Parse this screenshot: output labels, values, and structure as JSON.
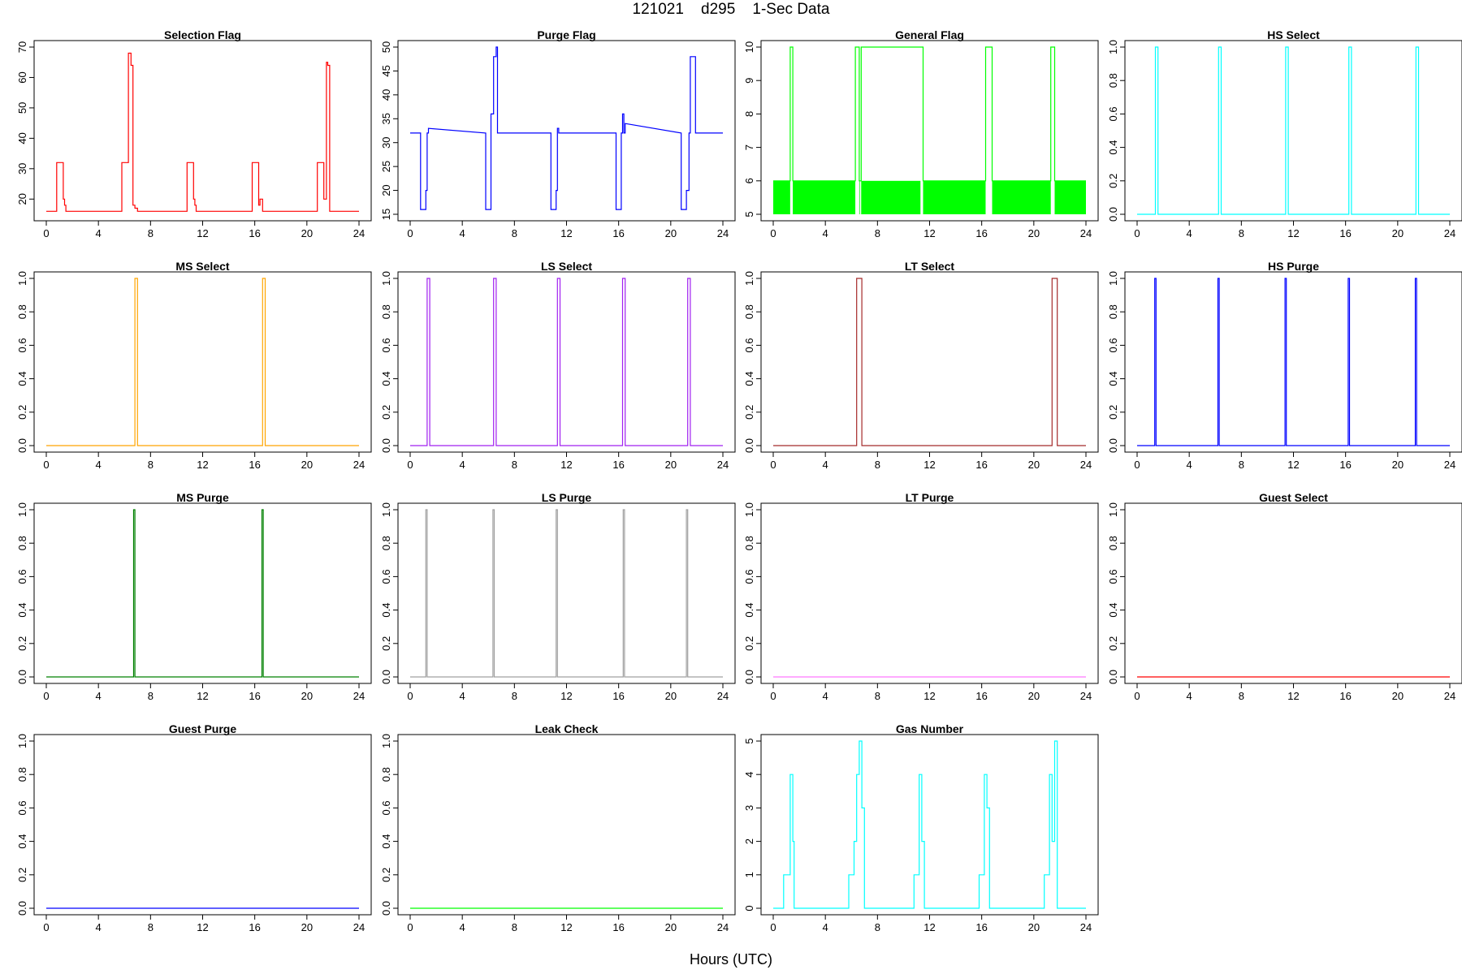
{
  "title": "121021    d295    1-Sec Data",
  "xlabel": "Hours (UTC)",
  "x_ticks": [
    "0",
    "4",
    "8",
    "12",
    "16",
    "20",
    "24"
  ],
  "chart_data": [
    {
      "type": "line",
      "title": "Selection Flag",
      "color": "#ff0000",
      "xlim": [
        0,
        24
      ],
      "ylim": [
        15,
        70
      ],
      "yticks": [
        20,
        30,
        40,
        50,
        60,
        70
      ],
      "x": [
        0,
        0.8,
        0.8,
        1.3,
        1.3,
        1.4,
        1.4,
        1.5,
        1.5,
        5.8,
        5.8,
        6.3,
        6.3,
        6.5,
        6.5,
        6.65,
        6.65,
        6.8,
        6.8,
        7.0,
        7.0,
        10.8,
        10.8,
        11.3,
        11.3,
        11.4,
        11.4,
        11.5,
        11.5,
        15.8,
        15.8,
        16.3,
        16.3,
        16.4,
        16.4,
        16.6,
        16.6,
        20.8,
        20.8,
        21.3,
        21.3,
        21.5,
        21.5,
        21.6,
        21.6,
        21.75,
        21.75,
        24
      ],
      "y": [
        16,
        16,
        32,
        32,
        20,
        20,
        18,
        18,
        16,
        16,
        32,
        32,
        68,
        68,
        64,
        64,
        18,
        18,
        17,
        17,
        16,
        16,
        32,
        32,
        20,
        20,
        18,
        18,
        16,
        16,
        32,
        32,
        18,
        18,
        20,
        20,
        16,
        16,
        32,
        32,
        20,
        20,
        65,
        65,
        64,
        64,
        16,
        16
      ]
    },
    {
      "type": "line",
      "title": "Purge Flag",
      "color": "#0000ff",
      "xlim": [
        0,
        24
      ],
      "ylim": [
        15,
        50
      ],
      "yticks": [
        15,
        20,
        25,
        30,
        35,
        40,
        45,
        50
      ],
      "x": [
        0,
        0.8,
        0.8,
        1.2,
        1.2,
        1.3,
        1.3,
        1.4,
        1.4,
        5.8,
        5.8,
        6.2,
        6.2,
        6.4,
        6.4,
        6.6,
        6.6,
        6.7,
        6.7,
        10.8,
        10.8,
        11.2,
        11.2,
        11.3,
        11.3,
        11.4,
        11.4,
        15.8,
        15.8,
        16.2,
        16.2,
        16.3,
        16.3,
        16.4,
        16.4,
        16.5,
        16.5,
        20.8,
        20.8,
        21.2,
        21.2,
        21.4,
        21.4,
        21.5,
        21.5,
        21.9,
        21.9,
        24
      ],
      "y": [
        32,
        32,
        16,
        16,
        20,
        20,
        32,
        32,
        33,
        32,
        16,
        16,
        36,
        36,
        48,
        48,
        50,
        50,
        32,
        32,
        16,
        16,
        20,
        20,
        33,
        33,
        32,
        32,
        16,
        16,
        32,
        32,
        36,
        36,
        32,
        32,
        34,
        32,
        16,
        16,
        20,
        20,
        32,
        32,
        48,
        48,
        32,
        32
      ]
    },
    {
      "type": "line",
      "title": "General Flag",
      "color": "#00ff00",
      "xlim": [
        0,
        24
      ],
      "ylim": [
        5,
        10
      ],
      "yticks": [
        5,
        6,
        7,
        8,
        9,
        10
      ],
      "band": [
        5,
        6
      ],
      "x": [
        0,
        1.3,
        1.3,
        1.5,
        1.5,
        6.3,
        6.3,
        6.6,
        6.6,
        6.75,
        6.75,
        11.3,
        11.3,
        11.5,
        11.5,
        16.3,
        16.3,
        16.8,
        16.8,
        21.3,
        21.3,
        21.6,
        21.6,
        24
      ],
      "y": [
        6,
        6,
        10,
        10,
        6,
        6,
        10,
        10,
        6,
        6,
        10,
        10,
        10,
        10,
        6,
        6,
        10,
        10,
        6,
        6,
        10,
        10,
        6,
        6
      ],
      "gaps": [
        [
          1.3,
          1.5
        ],
        [
          6.3,
          6.6
        ],
        [
          6.65,
          6.75
        ],
        [
          11.3,
          11.5
        ],
        [
          16.3,
          16.8
        ],
        [
          21.3,
          21.6
        ]
      ]
    },
    {
      "type": "line",
      "title": "HS Select",
      "color": "#00ffff",
      "xlim": [
        0,
        24
      ],
      "ylim": [
        0,
        1
      ],
      "yticks": [
        0.0,
        0.2,
        0.4,
        0.6,
        0.8,
        1.0
      ],
      "x": [
        0,
        1.4,
        1.4,
        1.6,
        1.6,
        6.25,
        6.25,
        6.45,
        6.45,
        11.4,
        11.4,
        11.6,
        11.6,
        16.25,
        16.25,
        16.45,
        16.45,
        21.4,
        21.4,
        21.6,
        21.6,
        24
      ],
      "y": [
        0,
        0,
        1,
        1,
        0,
        0,
        1,
        1,
        0,
        0,
        1,
        1,
        0,
        0,
        1,
        1,
        0,
        0,
        1,
        1,
        0,
        0
      ]
    },
    {
      "type": "line",
      "title": "MS Select",
      "color": "#ffa500",
      "xlim": [
        0,
        24
      ],
      "ylim": [
        0,
        1
      ],
      "yticks": [
        0.0,
        0.2,
        0.4,
        0.6,
        0.8,
        1.0
      ],
      "x": [
        0,
        6.8,
        6.8,
        7.0,
        7.0,
        16.6,
        16.6,
        16.8,
        16.8,
        24
      ],
      "y": [
        0,
        0,
        1,
        1,
        0,
        0,
        1,
        1,
        0,
        0
      ]
    },
    {
      "type": "line",
      "title": "LS Select",
      "color": "#a020f0",
      "xlim": [
        0,
        24
      ],
      "ylim": [
        0,
        1
      ],
      "yticks": [
        0.0,
        0.2,
        0.4,
        0.6,
        0.8,
        1.0
      ],
      "x": [
        0,
        1.3,
        1.3,
        1.5,
        1.5,
        6.4,
        6.4,
        6.6,
        6.6,
        11.3,
        11.3,
        11.5,
        11.5,
        16.3,
        16.3,
        16.5,
        16.5,
        21.3,
        21.3,
        21.5,
        21.5,
        24
      ],
      "y": [
        0,
        0,
        1,
        1,
        0,
        0,
        1,
        1,
        0,
        0,
        1,
        1,
        0,
        0,
        1,
        1,
        0,
        0,
        1,
        1,
        0,
        0
      ]
    },
    {
      "type": "line",
      "title": "LT Select",
      "color": "#a52a2a",
      "xlim": [
        0,
        24
      ],
      "ylim": [
        0,
        1
      ],
      "yticks": [
        0.0,
        0.2,
        0.4,
        0.6,
        0.8,
        1.0
      ],
      "x": [
        0,
        6.4,
        6.4,
        6.8,
        6.8,
        21.4,
        21.4,
        21.8,
        21.8,
        24
      ],
      "y": [
        0,
        0,
        1,
        1,
        0,
        0,
        1,
        1,
        0,
        0
      ]
    },
    {
      "type": "line",
      "title": "HS Purge",
      "color": "#0000ff",
      "xlim": [
        0,
        24
      ],
      "ylim": [
        0,
        1
      ],
      "yticks": [
        0.0,
        0.2,
        0.4,
        0.6,
        0.8,
        1.0
      ],
      "x": [
        0,
        1.35,
        1.35,
        1.45,
        1.45,
        6.2,
        6.2,
        6.3,
        6.3,
        11.35,
        11.35,
        11.45,
        11.45,
        16.2,
        16.2,
        16.3,
        16.3,
        21.35,
        21.35,
        21.45,
        21.45,
        24
      ],
      "y": [
        0,
        0,
        1,
        1,
        0,
        0,
        1,
        1,
        0,
        0,
        1,
        1,
        0,
        0,
        1,
        1,
        0,
        0,
        1,
        1,
        0,
        0
      ]
    },
    {
      "type": "line",
      "title": "MS Purge",
      "color": "#008000",
      "xlim": [
        0,
        24
      ],
      "ylim": [
        0,
        1
      ],
      "yticks": [
        0.0,
        0.2,
        0.4,
        0.6,
        0.8,
        1.0
      ],
      "x": [
        0,
        6.7,
        6.7,
        6.8,
        6.8,
        16.55,
        16.55,
        16.65,
        16.65,
        24
      ],
      "y": [
        0,
        0,
        1,
        1,
        0,
        0,
        1,
        1,
        0,
        0
      ]
    },
    {
      "type": "line",
      "title": "LS Purge",
      "color": "#a0a0a0",
      "xlim": [
        0,
        24
      ],
      "ylim": [
        0,
        1
      ],
      "yticks": [
        0.0,
        0.2,
        0.4,
        0.6,
        0.8,
        1.0
      ],
      "x": [
        0,
        1.2,
        1.2,
        1.3,
        1.3,
        6.35,
        6.35,
        6.45,
        6.45,
        11.2,
        11.2,
        11.3,
        11.3,
        16.35,
        16.35,
        16.45,
        16.45,
        21.2,
        21.2,
        21.3,
        21.3,
        24
      ],
      "y": [
        0,
        0,
        1,
        1,
        0,
        0,
        1,
        1,
        0,
        0,
        1,
        1,
        0,
        0,
        1,
        1,
        0,
        0,
        1,
        1,
        0,
        0
      ]
    },
    {
      "type": "line",
      "title": "LT Purge",
      "color": "#ff77ff",
      "xlim": [
        0,
        24
      ],
      "ylim": [
        0,
        1
      ],
      "yticks": [
        0.0,
        0.2,
        0.4,
        0.6,
        0.8,
        1.0
      ],
      "x": [
        0,
        24
      ],
      "y": [
        0,
        0
      ]
    },
    {
      "type": "line",
      "title": "Guest Select",
      "color": "#ff0000",
      "xlim": [
        0,
        24
      ],
      "ylim": [
        0,
        1
      ],
      "yticks": [
        0.0,
        0.2,
        0.4,
        0.6,
        0.8,
        1.0
      ],
      "x": [
        0,
        24
      ],
      "y": [
        0,
        0
      ]
    },
    {
      "type": "line",
      "title": "Guest Purge",
      "color": "#0000ff",
      "xlim": [
        0,
        24
      ],
      "ylim": [
        0,
        1
      ],
      "yticks": [
        0.0,
        0.2,
        0.4,
        0.6,
        0.8,
        1.0
      ],
      "x": [
        0,
        24
      ],
      "y": [
        0,
        0
      ]
    },
    {
      "type": "line",
      "title": "Leak Check",
      "color": "#00ff00",
      "xlim": [
        0,
        24
      ],
      "ylim": [
        0,
        1
      ],
      "yticks": [
        0.0,
        0.2,
        0.4,
        0.6,
        0.8,
        1.0
      ],
      "x": [
        0,
        24
      ],
      "y": [
        0,
        0
      ]
    },
    {
      "type": "line",
      "title": "Gas Number",
      "color": "#00ffff",
      "xlim": [
        0,
        24
      ],
      "ylim": [
        0,
        5
      ],
      "yticks": [
        0,
        1,
        2,
        3,
        4,
        5
      ],
      "x": [
        0,
        0.8,
        0.8,
        1.2,
        1.2,
        1.3,
        1.3,
        1.5,
        1.5,
        1.6,
        1.6,
        5.8,
        5.8,
        6.2,
        6.2,
        6.4,
        6.4,
        6.6,
        6.6,
        6.8,
        6.8,
        7.0,
        7.0,
        10.8,
        10.8,
        11.2,
        11.2,
        11.4,
        11.4,
        11.6,
        11.6,
        15.8,
        15.8,
        16.2,
        16.2,
        16.4,
        16.4,
        16.6,
        16.6,
        20.8,
        20.8,
        21.2,
        21.2,
        21.4,
        21.4,
        21.6,
        21.6,
        21.8,
        21.8,
        24
      ],
      "y": [
        0,
        0,
        1,
        1,
        1,
        1,
        4,
        4,
        2,
        2,
        0,
        0,
        1,
        1,
        2,
        2,
        4,
        4,
        5,
        5,
        3,
        3,
        0,
        0,
        1,
        1,
        4,
        4,
        2,
        2,
        0,
        0,
        1,
        1,
        4,
        4,
        3,
        3,
        0,
        0,
        1,
        1,
        4,
        4,
        2,
        2,
        5,
        5,
        0,
        0
      ]
    }
  ]
}
